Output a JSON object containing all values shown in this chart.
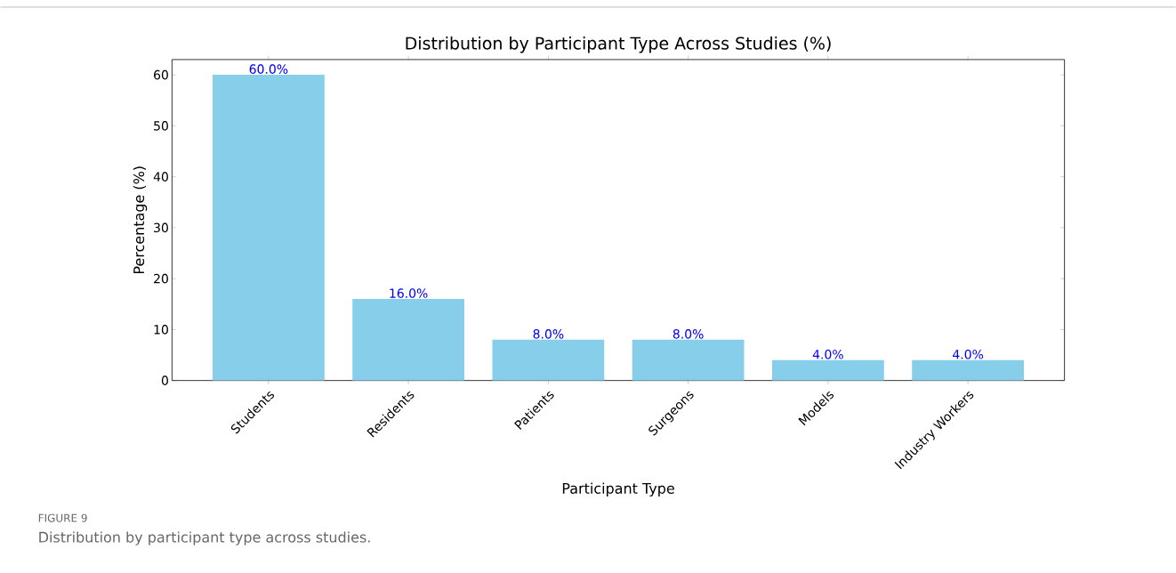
{
  "chart_data": {
    "type": "bar",
    "title": "Distribution by Participant Type Across Studies (%)",
    "xlabel": "Participant Type",
    "ylabel": "Percentage (%)",
    "categories": [
      "Students",
      "Residents",
      "Patients",
      "Surgeons",
      "Models",
      "Industry Workers"
    ],
    "values": [
      60,
      16,
      8,
      8,
      4,
      4
    ],
    "value_labels": [
      "60.0%",
      "16.0%",
      "8.0%",
      "8.0%",
      "4.0%",
      "4.0%"
    ],
    "color": "#87ceeb",
    "ylim": [
      0,
      63
    ],
    "yticks": [
      0,
      10,
      20,
      30,
      40,
      50,
      60
    ],
    "grid": false,
    "annotations": [
      "FIGURE 9",
      "Distribution by participant type across studies."
    ]
  }
}
